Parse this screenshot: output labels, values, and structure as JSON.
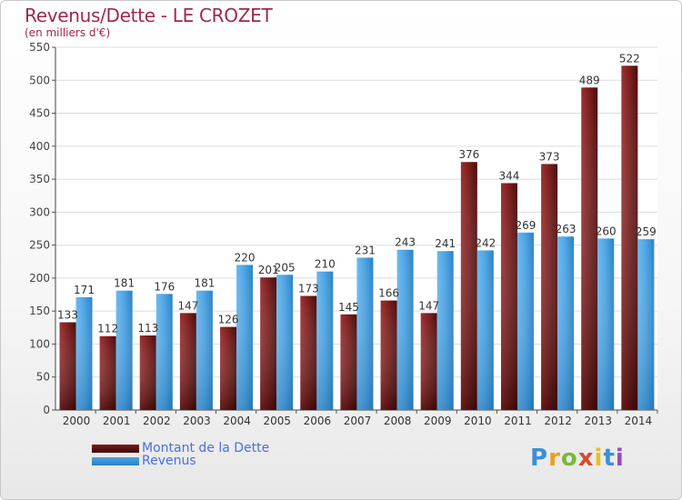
{
  "title": "Revenus/Dette - LE CROZET",
  "subtitle": "(en milliers d'€)",
  "logo": {
    "text": "Proxiti"
  },
  "legend": [
    {
      "label": "Montant de la Dette"
    },
    {
      "label": "Revenus"
    }
  ],
  "colors": {
    "debt": "#7a1c1c",
    "revenue": "#4ba3e3",
    "title": "#a0294a",
    "legend_text": "#4a6fdc"
  },
  "chart_data": {
    "type": "bar",
    "categories": [
      "2000",
      "2001",
      "2002",
      "2003",
      "2004",
      "2005",
      "2006",
      "2007",
      "2008",
      "2009",
      "2010",
      "2011",
      "2012",
      "2013",
      "2014"
    ],
    "series": [
      {
        "name": "Montant de la Dette",
        "values": [
          133,
          112,
          113,
          147,
          126,
          201,
          173,
          145,
          166,
          147,
          376,
          344,
          373,
          489,
          522
        ]
      },
      {
        "name": "Revenus",
        "values": [
          171,
          181,
          176,
          181,
          220,
          205,
          210,
          231,
          243,
          241,
          242,
          269,
          263,
          260,
          259
        ]
      }
    ],
    "ylim": [
      0,
      550
    ],
    "yticks": [
      0,
      50,
      100,
      150,
      200,
      250,
      300,
      350,
      400,
      450,
      500,
      550
    ],
    "grid": true
  }
}
